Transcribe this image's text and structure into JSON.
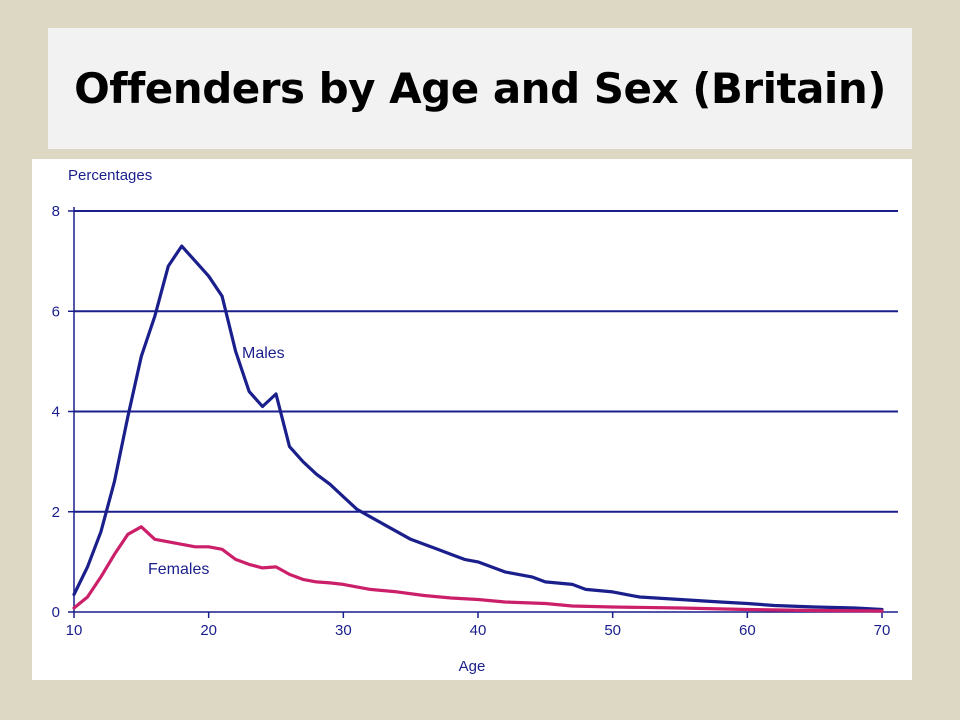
{
  "slide": {
    "title": "Offenders by Age and Sex (Britain)"
  },
  "colors": {
    "background": "#ddd8c4",
    "title_box": "#f2f2f2",
    "axis": "#1a1f8c",
    "grid": "#1a1f8c",
    "males": "#1a1f8c",
    "females": "#cc1f6a"
  },
  "chart_data": {
    "type": "line",
    "title": "Offenders by Age and Sex (Britain)",
    "xlabel": "Age",
    "ylabel": "Percentages",
    "xlim": [
      10,
      70
    ],
    "ylim": [
      0,
      8
    ],
    "xticks": [
      10,
      20,
      30,
      40,
      50,
      60,
      70
    ],
    "yticks": [
      0,
      2,
      4,
      6,
      8
    ],
    "grid": "horizontal",
    "series": [
      {
        "name": "Males",
        "color": "#1a1f8c",
        "x": [
          10,
          11,
          12,
          13,
          14,
          15,
          16,
          17,
          18,
          19,
          20,
          21,
          22,
          23,
          24,
          25,
          26,
          27,
          28,
          29,
          30,
          31,
          32,
          33,
          34,
          35,
          36,
          37,
          38,
          39,
          40,
          42,
          44,
          45,
          47,
          48,
          50,
          52,
          55,
          58,
          60,
          62,
          65,
          68,
          70
        ],
        "y": [
          0.35,
          0.9,
          1.6,
          2.6,
          3.9,
          5.1,
          5.9,
          6.9,
          7.3,
          7.0,
          6.7,
          6.3,
          5.2,
          4.4,
          4.1,
          4.35,
          3.3,
          3.0,
          2.75,
          2.55,
          2.3,
          2.05,
          1.9,
          1.75,
          1.6,
          1.45,
          1.35,
          1.25,
          1.15,
          1.05,
          1.0,
          0.8,
          0.7,
          0.6,
          0.55,
          0.45,
          0.4,
          0.3,
          0.25,
          0.2,
          0.17,
          0.13,
          0.1,
          0.08,
          0.05
        ]
      },
      {
        "name": "Females",
        "color": "#cc1f6a",
        "x": [
          10,
          11,
          12,
          13,
          14,
          15,
          16,
          17,
          18,
          19,
          20,
          21,
          22,
          23,
          24,
          25,
          26,
          27,
          28,
          29,
          30,
          32,
          34,
          36,
          38,
          40,
          42,
          45,
          47,
          50,
          55,
          60,
          65,
          70
        ],
        "y": [
          0.08,
          0.3,
          0.7,
          1.15,
          1.55,
          1.7,
          1.45,
          1.4,
          1.35,
          1.3,
          1.3,
          1.25,
          1.05,
          0.95,
          0.88,
          0.9,
          0.75,
          0.65,
          0.6,
          0.58,
          0.55,
          0.45,
          0.4,
          0.33,
          0.28,
          0.25,
          0.2,
          0.17,
          0.12,
          0.1,
          0.08,
          0.05,
          0.03,
          0.02
        ]
      }
    ]
  }
}
